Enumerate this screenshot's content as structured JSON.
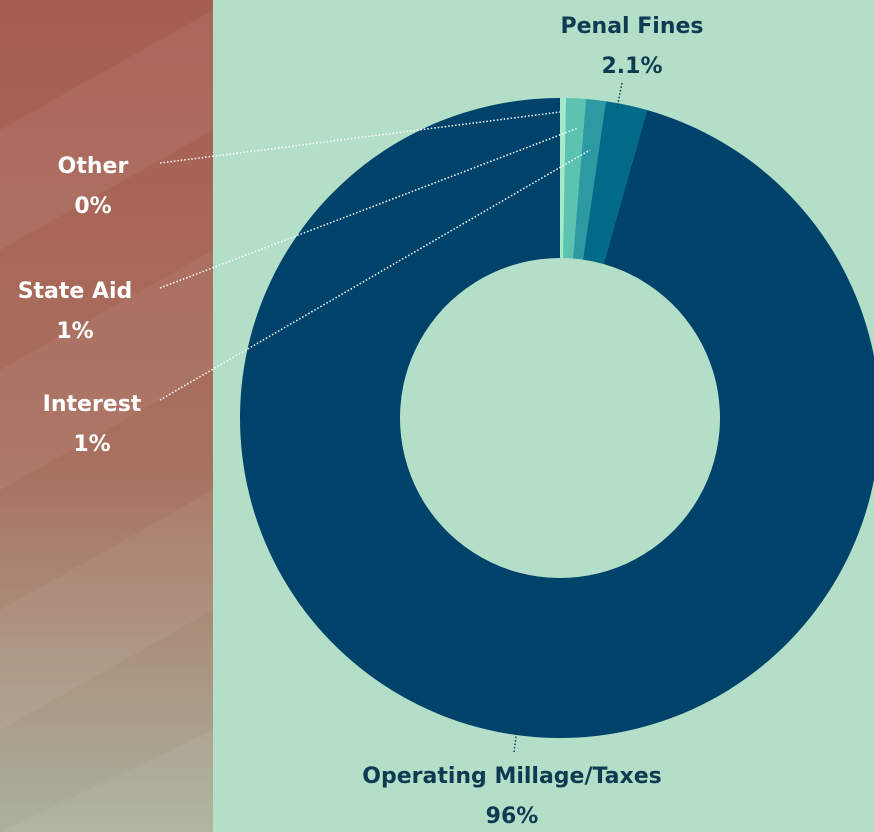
{
  "chart_data": {
    "type": "donut",
    "categories": [
      "Other",
      "State Aid",
      "Interest",
      "Penal Fines",
      "Operating Millage/Taxes"
    ],
    "values": [
      0.3,
      1,
      1,
      2.1,
      96
    ],
    "value_labels": [
      "0%",
      "1%",
      "1%",
      "2.1%",
      "96%"
    ],
    "colors": [
      "#a6e8c9",
      "#5cc3b1",
      "#2b9aa2",
      "#006a89",
      "#00436a"
    ]
  }
}
